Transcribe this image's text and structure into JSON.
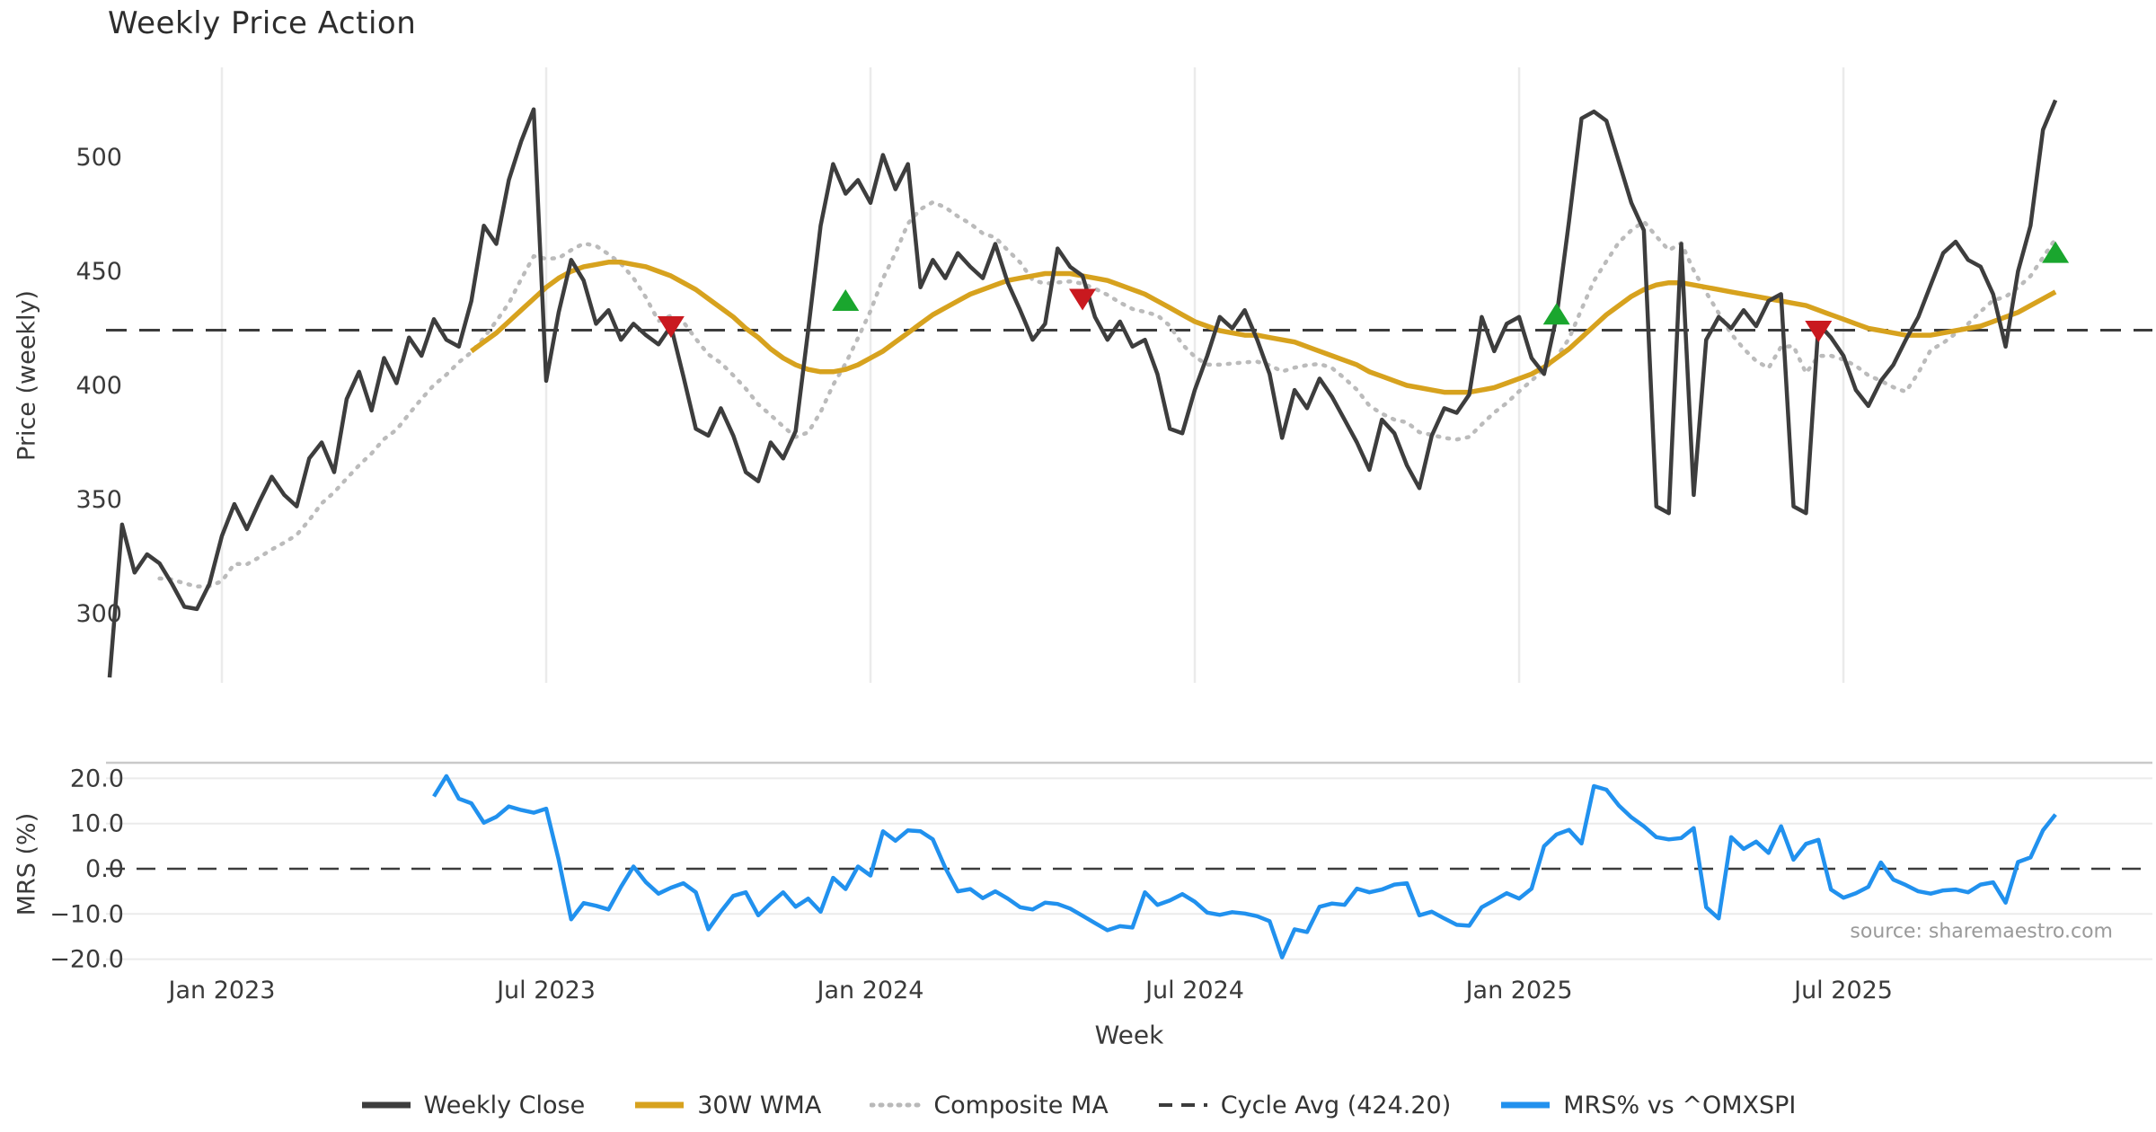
{
  "title": "Weekly Price Action",
  "source_note": "source: sharemaestro.com",
  "price_panel": {
    "ylabel": "Price (weekly)",
    "yticks": [
      300,
      350,
      400,
      450,
      500
    ],
    "ylim": [
      255,
      538
    ],
    "cycle_avg": 424.2
  },
  "mrs_panel": {
    "ylabel": "MRS (%)",
    "ytick_labels": [
      "20.0",
      "10.0",
      "0.0",
      "−10.0",
      "−20.0"
    ],
    "ytick_values": [
      20,
      10,
      0,
      -10,
      -20
    ],
    "ylim": [
      -21.8,
      23.4
    ],
    "zero_line": 0
  },
  "x_axis": {
    "label": "Week",
    "ticks": [
      {
        "week": 9,
        "label": "Jan 2023"
      },
      {
        "week": 35,
        "label": "Jul 2023"
      },
      {
        "week": 61,
        "label": "Jan 2024"
      },
      {
        "week": 87,
        "label": "Jul 2024"
      },
      {
        "week": 113,
        "label": "Jan 2025"
      },
      {
        "week": 139,
        "label": "Jul 2025"
      }
    ]
  },
  "legend": [
    {
      "label": "Weekly Close",
      "kind": "solid",
      "color": "#3d3d3d"
    },
    {
      "label": "30W WMA",
      "kind": "solid",
      "color": "#d7a21e"
    },
    {
      "label": "Composite MA",
      "kind": "dotted",
      "color": "#b9b9b9"
    },
    {
      "label": "Cycle Avg (424.20)",
      "kind": "dashed",
      "color": "#3c3c3c"
    },
    {
      "label": "MRS% vs ^OMXSPI",
      "kind": "solid",
      "color": "#2191ee"
    }
  ],
  "colors": {
    "close": "#3d3d3d",
    "wma": "#d7a21e",
    "composite": "#bbbbbb",
    "cycle": "#3c3c3c",
    "mrs": "#2191ee",
    "grid": "#ebebeb",
    "spine": "#c9c9c9",
    "buy": "#1aa62e",
    "sell": "#c9191f",
    "tick_text": "#3a3a3a"
  },
  "chart_data": {
    "type": "line",
    "frequency": "weekly",
    "start_date": "2022-10-31",
    "weekly_close": {
      "start_week": 0,
      "values": [
        272,
        339,
        318,
        326,
        322,
        313,
        303,
        302,
        313,
        334,
        348,
        337,
        349,
        360,
        352,
        347,
        368,
        375,
        362,
        394,
        406,
        389,
        412,
        401,
        421,
        413,
        429,
        420,
        417,
        437,
        470,
        462,
        490,
        507,
        521,
        402,
        432,
        455,
        446,
        427,
        433,
        420,
        427,
        422,
        418,
        426,
        404,
        381,
        378,
        390,
        378,
        362,
        358,
        375,
        368,
        380,
        424,
        470,
        497,
        484,
        490,
        480,
        501,
        486,
        497,
        443,
        455,
        447,
        458,
        452,
        447,
        462,
        445,
        433,
        420,
        427,
        460,
        452,
        448,
        430,
        420,
        428,
        417,
        420,
        405,
        381,
        379,
        398,
        413,
        430,
        425,
        433,
        420,
        405,
        377,
        398,
        390,
        403,
        395,
        385,
        375,
        363,
        385,
        379,
        365,
        355,
        378,
        390,
        388,
        396,
        430,
        415,
        427,
        430,
        412,
        405,
        430,
        472,
        517,
        520,
        516,
        498,
        480,
        468,
        347,
        344,
        462,
        352,
        420,
        430,
        425,
        433,
        426,
        437,
        440,
        347,
        344,
        427,
        421,
        413,
        398,
        391,
        402,
        409,
        420,
        430,
        444,
        458,
        463,
        455,
        452,
        440,
        417,
        450,
        470,
        512,
        525
      ]
    },
    "wma_30w": {
      "start_week": 29,
      "values": [
        415,
        419,
        423,
        428,
        433,
        438,
        443,
        447,
        450,
        452,
        453,
        454,
        454,
        453,
        452,
        450,
        448,
        445,
        442,
        438,
        434,
        430,
        425,
        421,
        416,
        412,
        409,
        407,
        406,
        406,
        407,
        409,
        412,
        415,
        419,
        423,
        427,
        431,
        434,
        437,
        440,
        442,
        444,
        446,
        447,
        448,
        449,
        449,
        449,
        448,
        447,
        446,
        444,
        442,
        440,
        437,
        434,
        431,
        428,
        426,
        424,
        423,
        422,
        422,
        421,
        420,
        419,
        417,
        415,
        413,
        411,
        409,
        406,
        404,
        402,
        400,
        399,
        398,
        397,
        397,
        397,
        398,
        399,
        401,
        403,
        405,
        408,
        412,
        416,
        421,
        426,
        431,
        435,
        439,
        442,
        444,
        445,
        445,
        444,
        443,
        442,
        441,
        440,
        439,
        438,
        437,
        436,
        435,
        433,
        431,
        429,
        427,
        425,
        424,
        423,
        422,
        422,
        422,
        423,
        424,
        425,
        426,
        428,
        430,
        432,
        435,
        438,
        441
      ]
    },
    "composite_ma": {
      "derived": "trailing mean of weekly_close, 10-week window (expanding from week 4)",
      "start_week": 4
    },
    "mrs_pct": {
      "start_week": 26,
      "values": [
        16.0,
        20.5,
        15.5,
        14.5,
        10.2,
        11.5,
        13.8,
        13.0,
        12.4,
        13.3,
        2.0,
        -11.2,
        -7.6,
        -8.2,
        -9.0,
        -4.0,
        0.5,
        -3.0,
        -5.5,
        -4.2,
        -3.2,
        -5.2,
        -13.4,
        -9.5,
        -6.0,
        -5.2,
        -10.3,
        -7.6,
        -5.2,
        -8.4,
        -6.6,
        -9.5,
        -2.0,
        -4.5,
        0.5,
        -1.5,
        8.3,
        6.2,
        8.5,
        8.3,
        6.5,
        0.2,
        -5.0,
        -4.5,
        -6.5,
        -5.0,
        -6.6,
        -8.5,
        -9.0,
        -7.5,
        -7.8,
        -8.8,
        -10.4,
        -12.0,
        -13.6,
        -12.7,
        -13.0,
        -5.2,
        -8.0,
        -7.0,
        -5.6,
        -7.3,
        -9.7,
        -10.2,
        -9.6,
        -9.9,
        -10.5,
        -11.6,
        -19.6,
        -13.4,
        -14.0,
        -8.4,
        -7.7,
        -8.0,
        -4.4,
        -5.2,
        -4.6,
        -3.5,
        -3.2,
        -10.3,
        -9.5,
        -11.0,
        -12.4,
        -12.6,
        -8.5,
        -7.0,
        -5.4,
        -6.6,
        -4.4,
        5.0,
        7.6,
        8.6,
        5.6,
        18.3,
        17.5,
        14.0,
        11.4,
        9.4,
        7.0,
        6.5,
        6.8,
        9.0,
        -8.5,
        -11.0,
        7.0,
        4.4,
        6.0,
        3.5,
        9.4,
        2.0,
        5.5,
        6.4,
        -4.6,
        -6.4,
        -5.4,
        -4.0,
        1.4,
        -2.4,
        -3.6,
        -5.0,
        -5.5,
        -4.8,
        -4.6,
        -5.2,
        -3.5,
        -3.0,
        -7.5,
        1.5,
        2.5,
        8.5,
        12.0
      ]
    },
    "signal_markers": [
      {
        "week": 45,
        "value": 426,
        "direction": "down",
        "type": "sell"
      },
      {
        "week": 59,
        "value": 437,
        "direction": "up",
        "type": "buy"
      },
      {
        "week": 78,
        "value": 438,
        "direction": "down",
        "type": "sell"
      },
      {
        "week": 116,
        "value": 431,
        "direction": "up",
        "type": "buy"
      },
      {
        "week": 137,
        "value": 424,
        "direction": "down",
        "type": "sell"
      },
      {
        "week": 156,
        "value": 458,
        "direction": "up",
        "type": "buy"
      }
    ]
  }
}
